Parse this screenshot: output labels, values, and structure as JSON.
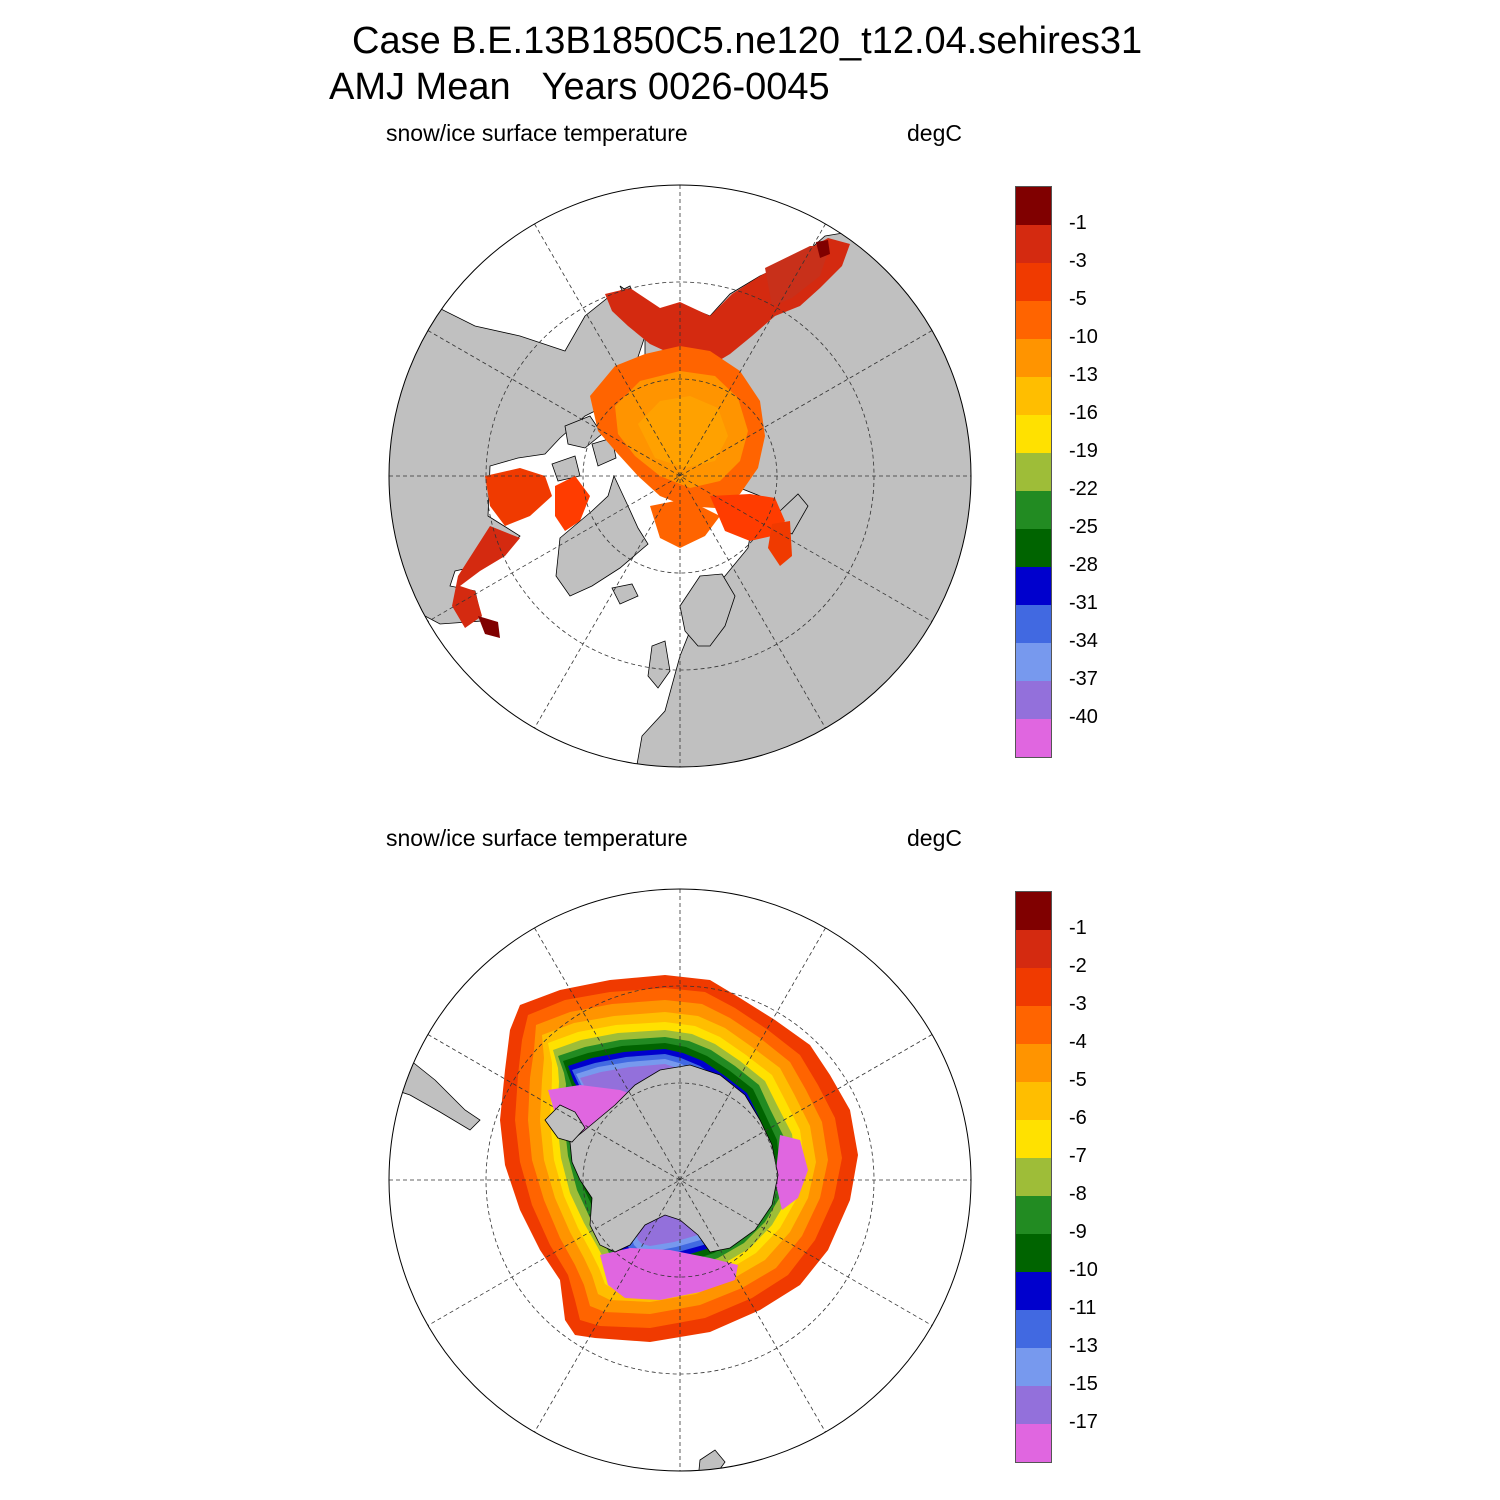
{
  "header": {
    "title_line1": "Case B.E.13B1850C5.ne120_t12.04.sehires31",
    "title_line2": "AMJ Mean   Years 0026-0045"
  },
  "panels": [
    {
      "id": "north",
      "subtitle_left": "snow/ice surface temperature",
      "subtitle_right": "degC",
      "colorbar": {
        "labels": [
          "-1",
          "-3",
          "-5",
          "-10",
          "-13",
          "-16",
          "-19",
          "-22",
          "-25",
          "-28",
          "-31",
          "-34",
          "-37",
          "-40"
        ],
        "colors": [
          "#800000",
          "#d42a10",
          "#f03a00",
          "#ff3c00",
          "#ff6400",
          "#ff9400",
          "#ffbe00",
          "#ffe100",
          "#9ebd38",
          "#228b22",
          "#006400",
          "#0000cd",
          "#4169e1",
          "#7799ee",
          "#9370db",
          "#e066e0"
        ]
      }
    },
    {
      "id": "south",
      "subtitle_left": "snow/ice surface temperature",
      "subtitle_right": "degC",
      "colorbar": {
        "labels": [
          "-1",
          "-2",
          "-3",
          "-4",
          "-5",
          "-6",
          "-7",
          "-8",
          "-9",
          "-10",
          "-11",
          "-13",
          "-15",
          "-17"
        ],
        "colors": [
          "#800000",
          "#d42a10",
          "#f03a00",
          "#ff3c00",
          "#ff6400",
          "#ff9400",
          "#ffbe00",
          "#ffe100",
          "#9ebd38",
          "#228b22",
          "#006400",
          "#0000cd",
          "#4169e1",
          "#7799ee",
          "#9370db",
          "#e066e0"
        ]
      }
    }
  ],
  "map_colors": {
    "land": "#c0c0c0",
    "ocean": "#ffffff"
  }
}
